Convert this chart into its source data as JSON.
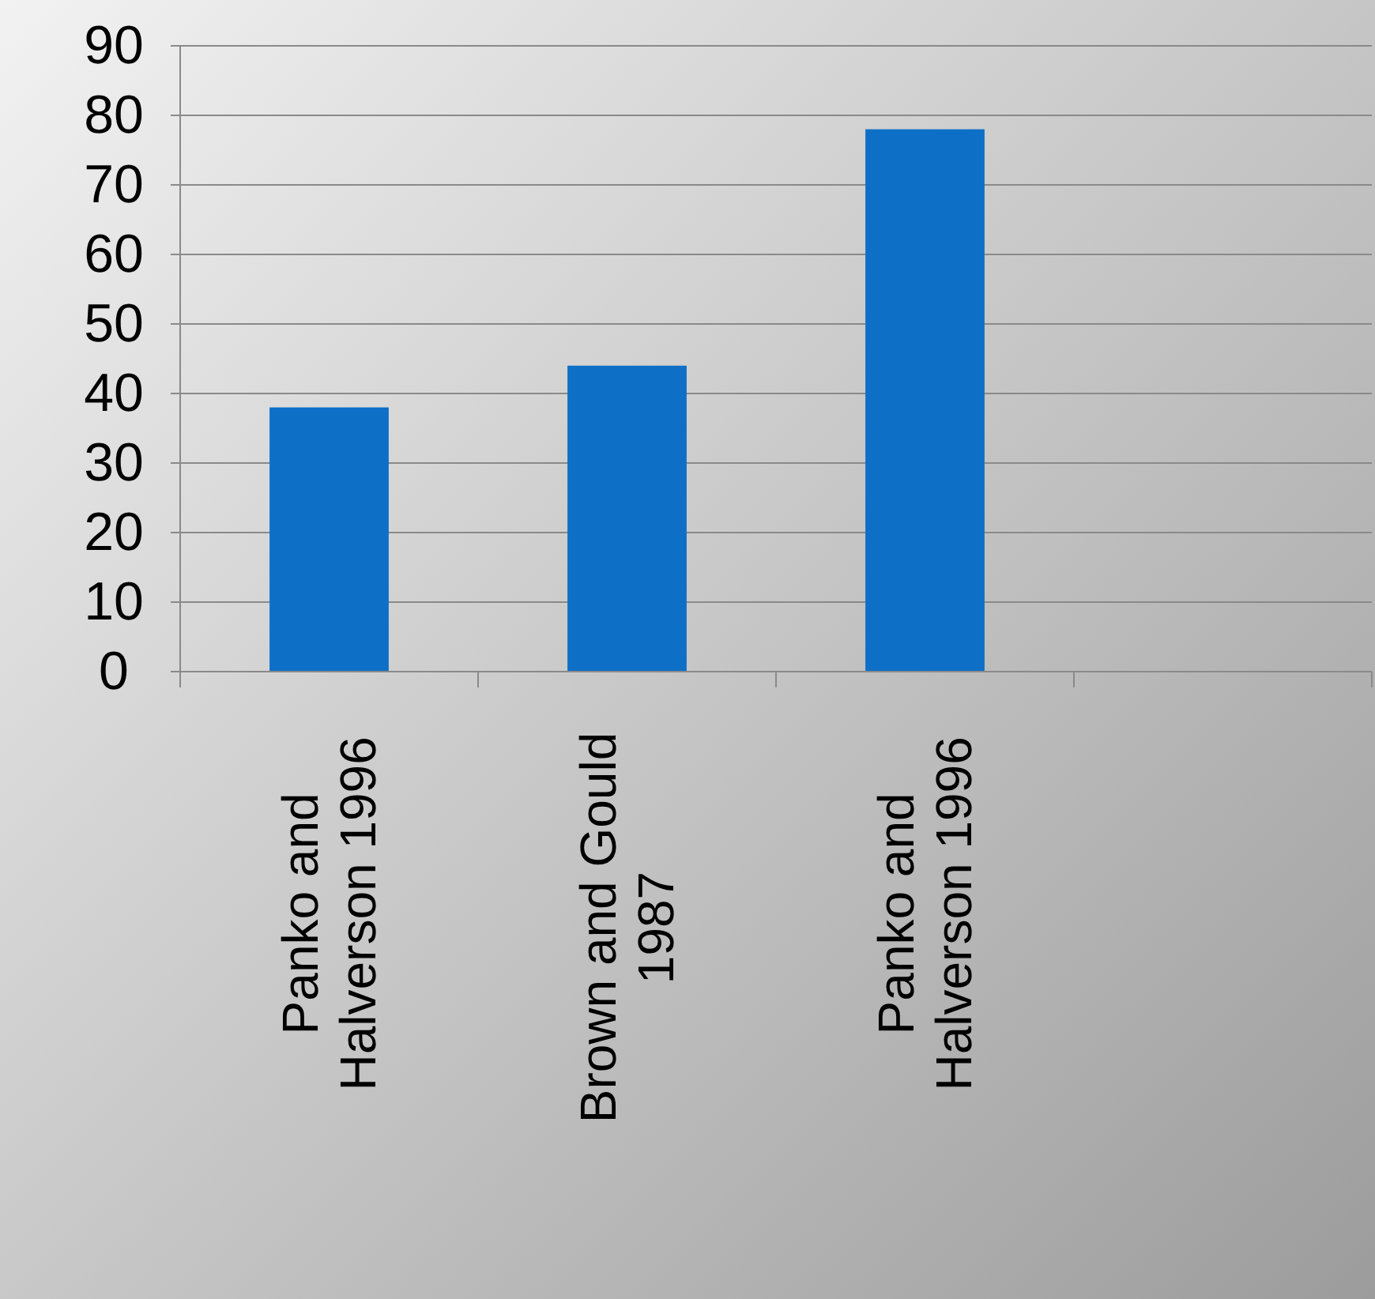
{
  "chart_data": {
    "type": "bar",
    "categories": [
      "Panko and Halverson 1996",
      "Brown and Gould 1987",
      "Panko and Halverson 1996",
      null
    ],
    "values": [
      38,
      44,
      78,
      null
    ],
    "color": "#0e6fc7",
    "ylim": [
      0,
      90
    ],
    "yticks": [
      0,
      10,
      20,
      30,
      40,
      50,
      60,
      70,
      80,
      90
    ],
    "grid": "y"
  }
}
